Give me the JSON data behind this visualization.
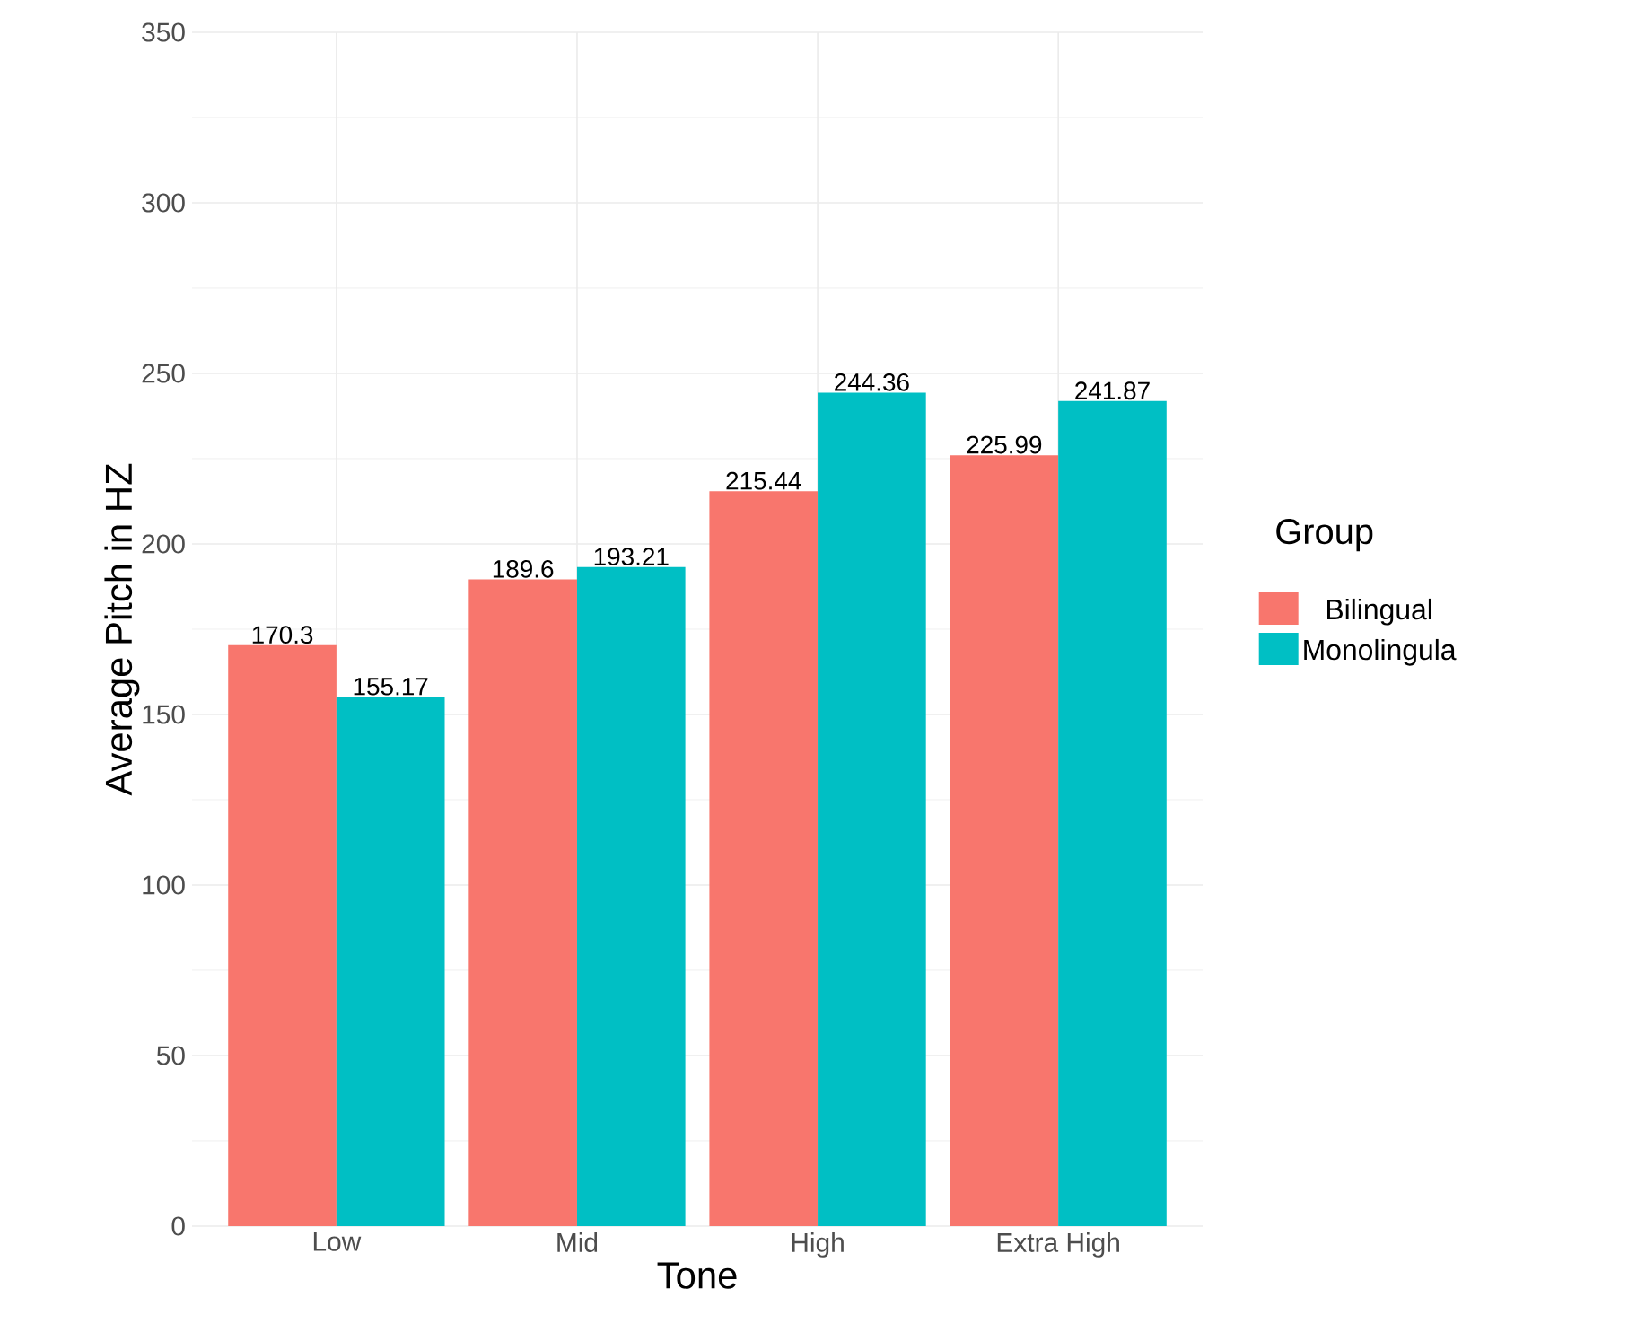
{
  "chart_data": {
    "type": "bar",
    "xlabel": "Tone",
    "ylabel": "Average Pitch in HZ",
    "legend_title": "Group",
    "categories": [
      "Low",
      "Mid",
      "High",
      "Extra High"
    ],
    "series": [
      {
        "name": "Bilingual",
        "color": "#f8766d",
        "values": [
          170.3,
          189.6,
          215.44,
          225.99
        ]
      },
      {
        "name": "Monolingula",
        "color": "#00bfc4",
        "values": [
          155.17,
          193.21,
          244.36,
          241.87
        ]
      }
    ],
    "ylim": [
      0,
      350
    ],
    "yticks": [
      0,
      50,
      100,
      150,
      200,
      250,
      300,
      350
    ],
    "grid": true,
    "legend": "right",
    "data_labels": true
  }
}
